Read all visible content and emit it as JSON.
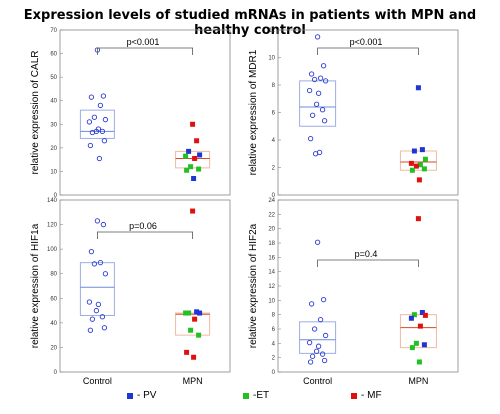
{
  "title": "Expression levels of studied mRNAs in patients with MPN and healthy control",
  "categories": [
    "Control",
    "MPN"
  ],
  "legend": [
    {
      "label": "- PV",
      "color": "#1f35d6"
    },
    {
      "label": "-ET",
      "color": "#22c022"
    },
    {
      "label": "- MF",
      "color": "#e01010"
    }
  ],
  "colors": {
    "control_box": "#9aaee6",
    "control_median": "#6f8ad8",
    "control_point": "#2a3ad0",
    "mpn_box": "#f0b8a0",
    "mpn_median": "#d44a2a",
    "PV": "#1f35d6",
    "ET": "#22c022",
    "MF": "#e01010"
  },
  "chart_data": [
    {
      "type": "scatter",
      "ylabel": "relative expression of CALR",
      "ylim": [
        0,
        70
      ],
      "yticks": [
        0,
        10,
        20,
        30,
        40,
        50,
        60,
        70
      ],
      "annotation": "p<0.001",
      "control": {
        "box": {
          "q1": 24,
          "median": 27,
          "q3": 36
        },
        "points": [
          61.5,
          42,
          41.5,
          38,
          33,
          32,
          31,
          28,
          27,
          27,
          26.5,
          23,
          21,
          15.5
        ]
      },
      "mpn": {
        "box": {
          "q1": 11.5,
          "median": 15.5,
          "q3": 18.5
        },
        "points": [
          {
            "group": "MF",
            "value": 30
          },
          {
            "group": "MF",
            "value": 23
          },
          {
            "group": "PV",
            "value": 18.5
          },
          {
            "group": "PV",
            "value": 17
          },
          {
            "group": "ET",
            "value": 16.5
          },
          {
            "group": "MF",
            "value": 15.5
          },
          {
            "group": "ET",
            "value": 12
          },
          {
            "group": "ET",
            "value": 11
          },
          {
            "group": "ET",
            "value": 10.5
          },
          {
            "group": "PV",
            "value": 7
          }
        ]
      }
    },
    {
      "type": "scatter",
      "ylabel": "relative expression of MDR1",
      "ylim": [
        0,
        12
      ],
      "yticks": [
        0,
        2,
        4,
        6,
        8,
        10,
        12
      ],
      "annotation": "p<0.001",
      "control": {
        "box": {
          "q1": 5,
          "median": 6.4,
          "q3": 8.3
        },
        "points": [
          11.5,
          9.4,
          8.8,
          8.5,
          8.4,
          8.3,
          7.6,
          7.4,
          6.6,
          6.2,
          5.8,
          5.4,
          4.1,
          3.1,
          3.0
        ]
      },
      "mpn": {
        "box": {
          "q1": 1.8,
          "median": 2.4,
          "q3": 3.2
        },
        "points": [
          {
            "group": "PV",
            "value": 7.8
          },
          {
            "group": "PV",
            "value": 3.3
          },
          {
            "group": "PV",
            "value": 3.2
          },
          {
            "group": "ET",
            "value": 2.6
          },
          {
            "group": "MF",
            "value": 2.3
          },
          {
            "group": "ET",
            "value": 2.2
          },
          {
            "group": "MF",
            "value": 2.1
          },
          {
            "group": "ET",
            "value": 1.9
          },
          {
            "group": "ET",
            "value": 1.8
          },
          {
            "group": "MF",
            "value": 1.1
          }
        ]
      }
    },
    {
      "type": "scatter",
      "ylabel": "relative expression of HIF1a",
      "ylim": [
        0,
        140
      ],
      "yticks": [
        0,
        20,
        40,
        60,
        80,
        100,
        120,
        140
      ],
      "annotation": "p=0.06",
      "control": {
        "box": {
          "q1": 46,
          "median": 69,
          "q3": 89
        },
        "points": [
          123,
          120,
          98,
          89,
          88,
          80,
          57,
          55,
          50,
          45,
          43,
          36,
          34
        ]
      },
      "mpn": {
        "box": {
          "q1": 30,
          "median": 47,
          "q3": 48
        },
        "points": [
          {
            "group": "MF",
            "value": 131
          },
          {
            "group": "PV",
            "value": 49
          },
          {
            "group": "ET",
            "value": 48
          },
          {
            "group": "PV",
            "value": 48
          },
          {
            "group": "ET",
            "value": 48
          },
          {
            "group": "MF",
            "value": 43
          },
          {
            "group": "ET",
            "value": 34
          },
          {
            "group": "ET",
            "value": 30
          },
          {
            "group": "MF",
            "value": 16
          },
          {
            "group": "MF",
            "value": 12
          }
        ]
      }
    },
    {
      "type": "scatter",
      "ylabel": "relative expression of HIF2a",
      "ylim": [
        0,
        24
      ],
      "yticks": [
        0,
        2,
        4,
        6,
        8,
        10,
        12,
        14,
        16,
        18,
        20,
        22,
        24
      ],
      "annotation": "p=0.4",
      "control": {
        "box": {
          "q1": 2.6,
          "median": 4.5,
          "q3": 7.0
        },
        "points": [
          18.1,
          10.1,
          9.5,
          7.3,
          6.0,
          5.1,
          4.1,
          3.6,
          2.9,
          2.5,
          2.2,
          1.6,
          1.4
        ]
      },
      "mpn": {
        "box": {
          "q1": 3.4,
          "median": 6.2,
          "q3": 8.0
        },
        "points": [
          {
            "group": "MF",
            "value": 21.4
          },
          {
            "group": "PV",
            "value": 8.3
          },
          {
            "group": "ET",
            "value": 8.0
          },
          {
            "group": "MF",
            "value": 7.9
          },
          {
            "group": "PV",
            "value": 7.5
          },
          {
            "group": "MF",
            "value": 6.4
          },
          {
            "group": "ET",
            "value": 4.0
          },
          {
            "group": "PV",
            "value": 3.8
          },
          {
            "group": "ET",
            "value": 3.4
          },
          {
            "group": "ET",
            "value": 1.4
          }
        ]
      }
    }
  ]
}
